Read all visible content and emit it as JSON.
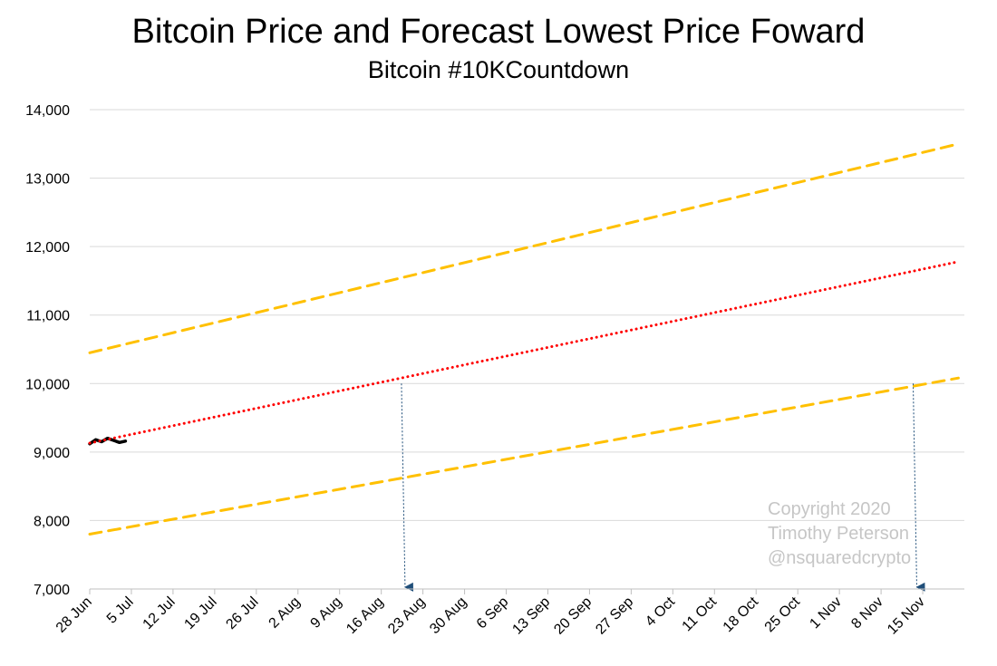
{
  "title": "Bitcoin Price and Forecast Lowest Price Foward",
  "subtitle": "Bitcoin #10KCountdown",
  "copyright": [
    "Copyright 2020",
    "Timothy Peterson",
    "@nsquaredcrypto"
  ],
  "colors": {
    "actual": "#000000",
    "forecast": "#ff0000",
    "band": "#ffc000",
    "arrow": "#1f4e79",
    "grid": "#d9d9d9",
    "axis": "#bfbfbf"
  },
  "chart_data": {
    "type": "line",
    "title": "Bitcoin Price and Forecast Lowest Price Foward",
    "subtitle": "Bitcoin #10KCountdown",
    "x_type": "date",
    "xlim": [
      "2020-06-28",
      "2020-11-22"
    ],
    "ylim": [
      7000,
      14000
    ],
    "yticks": [
      7000,
      8000,
      9000,
      10000,
      11000,
      12000,
      13000,
      14000
    ],
    "ytick_labels": [
      "7,000",
      "8,000",
      "9,000",
      "10,000",
      "11,000",
      "12,000",
      "13,000",
      "14,000"
    ],
    "xticks": [
      "2020-06-28",
      "2020-07-05",
      "2020-07-12",
      "2020-07-19",
      "2020-07-26",
      "2020-08-02",
      "2020-08-09",
      "2020-08-16",
      "2020-08-23",
      "2020-08-30",
      "2020-09-06",
      "2020-09-13",
      "2020-09-20",
      "2020-09-27",
      "2020-10-04",
      "2020-10-11",
      "2020-10-18",
      "2020-10-25",
      "2020-11-01",
      "2020-11-08",
      "2020-11-15"
    ],
    "xtick_labels": [
      "28 Jun",
      "5 Jul",
      "12 Jul",
      "19 Jul",
      "26 Jul",
      "2 Aug",
      "9 Aug",
      "16 Aug",
      "23 Aug",
      "30 Aug",
      "6 Sep",
      "13 Sep",
      "20 Sep",
      "27 Sep",
      "4 Oct",
      "11 Oct",
      "18 Oct",
      "25 Oct",
      "1 Nov",
      "8 Nov",
      "15 Nov"
    ],
    "grid": "horizontal",
    "series": [
      {
        "style": "solid",
        "color": "#000000",
        "points": [
          [
            "2020-06-28",
            9120
          ],
          [
            "2020-06-29",
            9180
          ],
          [
            "2020-06-30",
            9150
          ],
          [
            "2020-07-01",
            9200
          ],
          [
            "2020-07-02",
            9170
          ],
          [
            "2020-07-03",
            9140
          ],
          [
            "2020-07-04",
            9160
          ]
        ]
      },
      {
        "style": "dotted",
        "color": "#ff0000",
        "points": [
          [
            "2020-06-28",
            9130
          ],
          [
            "2020-11-21",
            11780
          ]
        ]
      },
      {
        "style": "dashed",
        "color": "#ffc000",
        "points": [
          [
            "2020-06-28",
            10450
          ],
          [
            "2020-11-21",
            13500
          ]
        ]
      },
      {
        "style": "dashed",
        "color": "#ffc000",
        "points": [
          [
            "2020-06-28",
            7800
          ],
          [
            "2020-11-21",
            10080
          ]
        ]
      }
    ],
    "annotations": [
      {
        "type": "arrow",
        "from": [
          "2020-08-20",
          10000
        ],
        "to": [
          "2020-08-20",
          7000
        ]
      },
      {
        "type": "arrow",
        "from": [
          "2020-11-14",
          10000
        ],
        "to": [
          "2020-11-14",
          7000
        ]
      }
    ]
  }
}
